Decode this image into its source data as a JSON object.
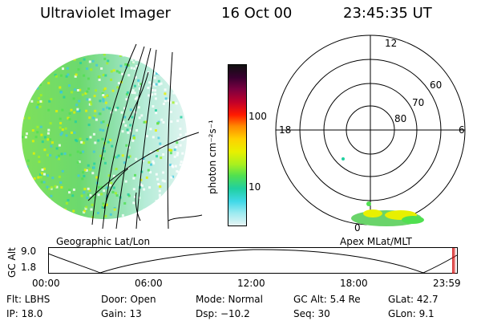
{
  "header": {
    "instrument": "Ultraviolet Imager",
    "date": "16 Oct 00",
    "time": "23:45:35 UT"
  },
  "colorbar": {
    "unit_label": "photon cm⁻²s⁻¹",
    "ticks": [
      "100",
      "10"
    ],
    "colors": [
      "#101010",
      "#3a0030",
      "#7a0040",
      "#c0002a",
      "#ff1a00",
      "#ff8800",
      "#ffd000",
      "#e8f000",
      "#a8f020",
      "#50e050",
      "#20d0a0",
      "#40d8e8",
      "#9aeaf0",
      "#e6f4f4"
    ]
  },
  "left_panel": {
    "label": "Geographic Lat/Lon"
  },
  "polar_plot": {
    "label": "Apex MLat/MLT",
    "mlt_labels": {
      "top": "12",
      "left": "18",
      "right": "6",
      "bottom": "0"
    },
    "lat_labels": [
      "60",
      "70",
      "80"
    ]
  },
  "altitude_plot": {
    "ylabel": "GC Alt",
    "y_ticks": [
      "9.0",
      "1.8"
    ],
    "x_ticks": [
      "00:00",
      "06:00",
      "12:00",
      "18:00",
      "23:59"
    ],
    "marker_color": "#d00000"
  },
  "info": {
    "flt": "Flt: LBHS",
    "door": "Door: Open",
    "mode": "Mode: Normal",
    "gc_alt": "GC Alt: 5.4 Re",
    "glat": "GLat:  42.7",
    "ip": "IP: 18.0",
    "gain": "Gain: 13",
    "dsp": "Dsp:  −10.2",
    "seq": "Seq: 30",
    "glon": "GLon:   9.1"
  }
}
